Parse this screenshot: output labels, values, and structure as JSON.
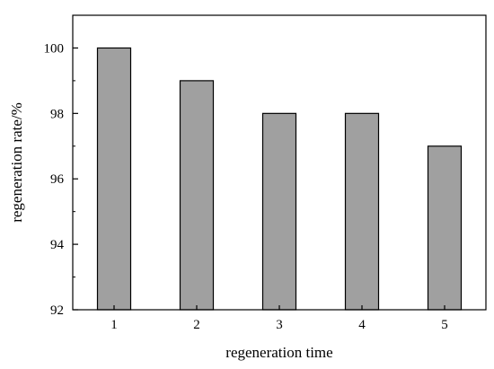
{
  "chart_data": {
    "type": "bar",
    "categories": [
      "1",
      "2",
      "3",
      "4",
      "5"
    ],
    "values": [
      100,
      99,
      98,
      98,
      97
    ],
    "xlabel": "regeneration time",
    "ylabel": "regeneration rate/%",
    "ylim": [
      92,
      101
    ],
    "yticks": [
      92,
      94,
      96,
      98,
      100
    ],
    "grid": false,
    "bar_color": "#a0a0a0",
    "bar_edge_color": "#000000"
  }
}
